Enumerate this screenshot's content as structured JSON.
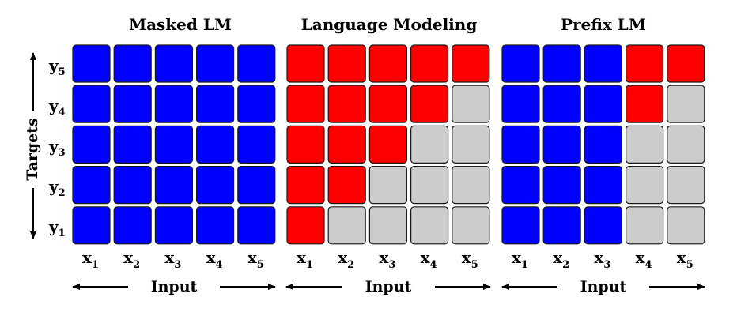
{
  "panels": [
    {
      "title": "Masked LM",
      "input_label": "Input",
      "matrix": [
        [
          "blue",
          "blue",
          "blue",
          "blue",
          "blue"
        ],
        [
          "blue",
          "blue",
          "blue",
          "blue",
          "blue"
        ],
        [
          "blue",
          "blue",
          "blue",
          "blue",
          "blue"
        ],
        [
          "blue",
          "blue",
          "blue",
          "blue",
          "blue"
        ],
        [
          "blue",
          "blue",
          "blue",
          "blue",
          "blue"
        ]
      ]
    },
    {
      "title": "Language Modeling",
      "input_label": "Input",
      "matrix": [
        [
          "red",
          "red",
          "red",
          "red",
          "red"
        ],
        [
          "red",
          "red",
          "red",
          "red",
          "gray"
        ],
        [
          "red",
          "red",
          "red",
          "gray",
          "gray"
        ],
        [
          "red",
          "red",
          "gray",
          "gray",
          "gray"
        ],
        [
          "red",
          "gray",
          "gray",
          "gray",
          "gray"
        ]
      ]
    },
    {
      "title": "Prefix LM",
      "input_label": "Input",
      "matrix": [
        [
          "blue",
          "blue",
          "blue",
          "red",
          "red"
        ],
        [
          "blue",
          "blue",
          "blue",
          "red",
          "gray"
        ],
        [
          "blue",
          "blue",
          "blue",
          "gray",
          "gray"
        ],
        [
          "blue",
          "blue",
          "blue",
          "gray",
          "gray"
        ],
        [
          "blue",
          "blue",
          "blue",
          "gray",
          "gray"
        ]
      ]
    }
  ],
  "row_labels": [
    {
      "base": "y",
      "sub": "5"
    },
    {
      "base": "y",
      "sub": "4"
    },
    {
      "base": "y",
      "sub": "3"
    },
    {
      "base": "y",
      "sub": "2"
    },
    {
      "base": "y",
      "sub": "1"
    }
  ],
  "col_labels": [
    {
      "base": "x",
      "sub": "1"
    },
    {
      "base": "x",
      "sub": "2"
    },
    {
      "base": "x",
      "sub": "3"
    },
    {
      "base": "x",
      "sub": "4"
    },
    {
      "base": "x",
      "sub": "5"
    }
  ],
  "targets_label": "Targets",
  "colors": {
    "blue": "#0000ff",
    "red": "#ff0000",
    "gray": "#cccccc",
    "border": "#1a1a1a"
  }
}
